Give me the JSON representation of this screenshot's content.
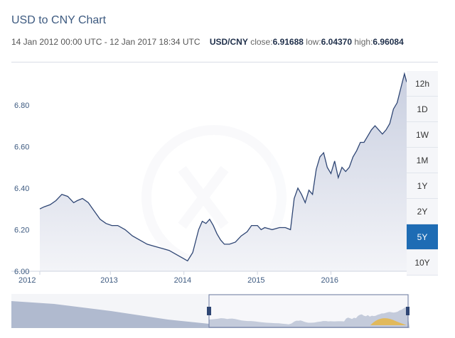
{
  "header": {
    "title": "USD to CNY Chart",
    "range_text": "14 Jan 2012 00:00 UTC - 12 Jan 2017 18:34 UTC",
    "pair": "USD/CNY",
    "close_label": "close:",
    "close_value": "6.91688",
    "low_label": "low:",
    "low_value": "6.04370",
    "high_label": "high:",
    "high_value": "6.96084"
  },
  "range_buttons": [
    {
      "label": "12h",
      "active": false
    },
    {
      "label": "1D",
      "active": false
    },
    {
      "label": "1W",
      "active": false
    },
    {
      "label": "1M",
      "active": false
    },
    {
      "label": "1Y",
      "active": false
    },
    {
      "label": "2Y",
      "active": false
    },
    {
      "label": "5Y",
      "active": true
    },
    {
      "label": "10Y",
      "active": false
    }
  ],
  "colors": {
    "line": "#2f4674",
    "fill_top": "#c9cfe0",
    "fill_bottom": "#f3f4f8",
    "accent": "#1e6cb4",
    "navigator_fill": "#9aa6c2",
    "navigator_highlight": "#e8b43c"
  },
  "chart_data": {
    "type": "area",
    "title": "USD to CNY Chart",
    "ylim": [
      6.0,
      6.97
    ],
    "xlim": [
      2012.04,
      2017.03
    ],
    "yticks": [
      "6.00",
      "6.20",
      "6.40",
      "6.60",
      "6.80"
    ],
    "xticks": [
      "2012",
      "2013",
      "2014",
      "2015",
      "2016"
    ],
    "grid": false,
    "series": [
      {
        "x": [
          2012.04,
          2012.1,
          2012.18,
          2012.26,
          2012.34,
          2012.42,
          2012.5,
          2012.55,
          2012.62,
          2012.7,
          2012.78,
          2012.86,
          2012.94,
          2013.02,
          2013.1,
          2013.2,
          2013.3,
          2013.4,
          2013.5,
          2013.6,
          2013.7,
          2013.8,
          2013.9,
          2014.0,
          2014.05,
          2014.12,
          2014.2,
          2014.25,
          2014.3,
          2014.35,
          2014.4,
          2014.45,
          2014.5,
          2014.55,
          2014.62,
          2014.7,
          2014.78,
          2014.86,
          2014.92,
          2015.0,
          2015.05,
          2015.1,
          2015.2,
          2015.3,
          2015.38,
          2015.45,
          2015.5,
          2015.55,
          2015.6,
          2015.65,
          2015.7,
          2015.75,
          2015.8,
          2015.85,
          2015.9,
          2015.95,
          2016.0,
          2016.05,
          2016.1,
          2016.15,
          2016.2,
          2016.25,
          2016.3,
          2016.35,
          2016.4,
          2016.45,
          2016.5,
          2016.55,
          2016.6,
          2016.65,
          2016.7,
          2016.75,
          2016.8,
          2016.85,
          2016.9,
          2016.95,
          2017.0,
          2017.03
        ],
        "values": [
          6.3,
          6.31,
          6.32,
          6.34,
          6.37,
          6.36,
          6.33,
          6.34,
          6.35,
          6.33,
          6.29,
          6.25,
          6.23,
          6.22,
          6.22,
          6.2,
          6.17,
          6.15,
          6.13,
          6.12,
          6.11,
          6.1,
          6.08,
          6.06,
          6.05,
          6.09,
          6.2,
          6.24,
          6.23,
          6.25,
          6.22,
          6.18,
          6.15,
          6.13,
          6.13,
          6.14,
          6.17,
          6.19,
          6.22,
          6.22,
          6.2,
          6.21,
          6.2,
          6.21,
          6.21,
          6.2,
          6.35,
          6.4,
          6.37,
          6.33,
          6.39,
          6.37,
          6.49,
          6.55,
          6.57,
          6.5,
          6.47,
          6.53,
          6.45,
          6.5,
          6.48,
          6.5,
          6.55,
          6.58,
          6.62,
          6.62,
          6.65,
          6.68,
          6.7,
          6.68,
          6.66,
          6.68,
          6.71,
          6.78,
          6.81,
          6.88,
          6.95,
          6.91
        ]
      }
    ]
  }
}
